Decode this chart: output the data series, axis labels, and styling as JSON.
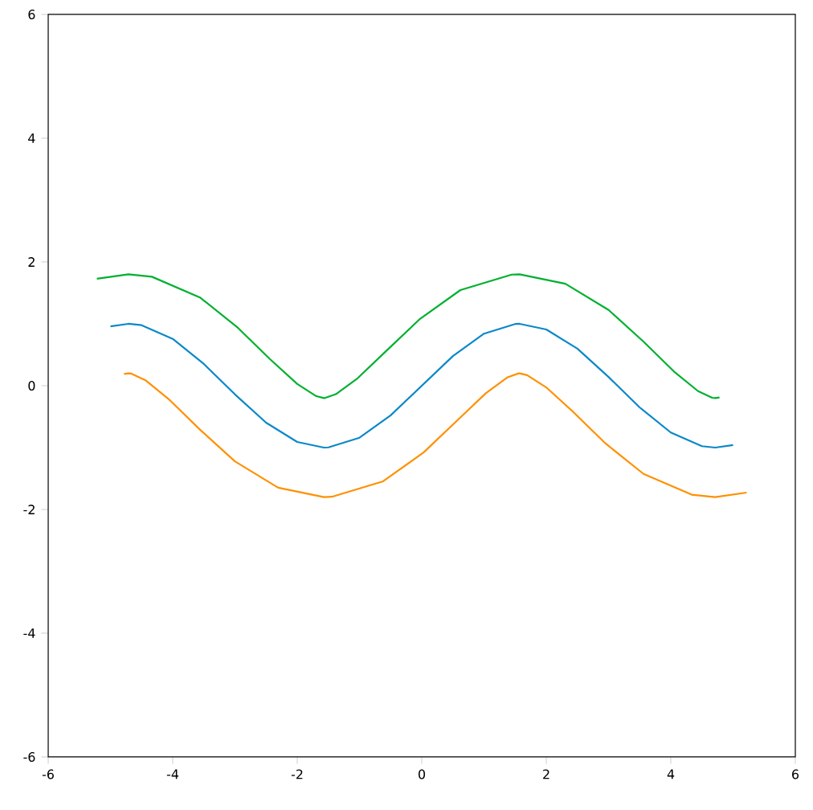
{
  "chart_data": {
    "type": "line",
    "xlim": [
      -6,
      6
    ],
    "ylim": [
      -6,
      6
    ],
    "xticks": [
      -6,
      -4,
      -2,
      0,
      2,
      4,
      6
    ],
    "yticks": [
      -6,
      -4,
      -2,
      0,
      2,
      4,
      6
    ],
    "series": [
      {
        "color": "#0a88c8",
        "x": [
          -5,
          -4.712,
          -4.5,
          -4,
          -3.5,
          -3,
          -2.5,
          -2,
          -1.571,
          -1.5,
          -1,
          -0.5,
          0,
          0.5,
          1,
          1.5,
          1.571,
          2,
          2.5,
          3,
          3.5,
          4,
          4.5,
          4.712,
          5
        ],
        "values": [
          0.959,
          1,
          0.978,
          0.757,
          0.351,
          -0.141,
          -0.598,
          -0.909,
          -1,
          -0.997,
          -0.841,
          -0.479,
          0,
          0.479,
          0.841,
          0.997,
          1,
          0.909,
          0.598,
          0.141,
          -0.351,
          -0.757,
          -0.978,
          -1,
          -0.959
        ]
      },
      {
        "color": "#00b030",
        "x": [
          -5.218,
          -4.712,
          -4.335,
          -3.562,
          -2.953,
          -2.437,
          -1.999,
          -1.693,
          -1.571,
          -1.556,
          -1.38,
          -1.028,
          -0.566,
          -0.028,
          0.62,
          1.444,
          1.571,
          2.307,
          3.001,
          3.563,
          4.047,
          4.438,
          4.665,
          4.712,
          4.782
        ],
        "values": [
          1.728,
          1.8,
          1.761,
          1.426,
          0.935,
          0.428,
          0.027,
          -0.17,
          -0.2,
          -0.199,
          -0.137,
          0.122,
          0.566,
          1.08,
          1.545,
          1.795,
          1.8,
          1.648,
          1.223,
          0.71,
          0.233,
          -0.088,
          -0.195,
          -0.2,
          -0.19
        ]
      },
      {
        "color": "#ff9000",
        "x": [
          -4.782,
          -4.712,
          -4.665,
          -4.438,
          -4.047,
          -3.563,
          -3.001,
          -2.307,
          -1.571,
          -1.444,
          -0.62,
          0.028,
          0.566,
          1.028,
          1.38,
          1.556,
          1.571,
          1.693,
          1.999,
          2.437,
          2.953,
          3.562,
          4.335,
          4.712,
          5.218
        ],
        "values": [
          0.19,
          0.2,
          0.195,
          0.088,
          -0.233,
          -0.71,
          -1.223,
          -1.648,
          -1.8,
          -1.795,
          -1.545,
          -1.08,
          -0.566,
          -0.122,
          0.137,
          0.199,
          0.2,
          0.17,
          -0.027,
          -0.428,
          -0.935,
          -1.426,
          -1.761,
          -1.8,
          -1.728
        ]
      }
    ]
  }
}
